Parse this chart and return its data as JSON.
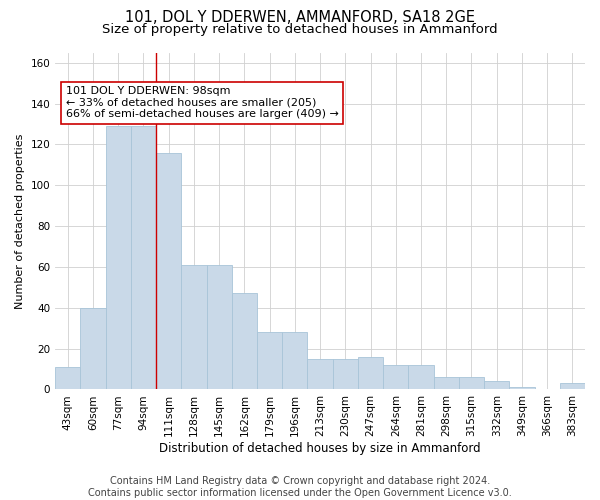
{
  "title1": "101, DOL Y DDERWEN, AMMANFORD, SA18 2GE",
  "title2": "Size of property relative to detached houses in Ammanford",
  "xlabel": "Distribution of detached houses by size in Ammanford",
  "ylabel": "Number of detached properties",
  "categories": [
    "43sqm",
    "60sqm",
    "77sqm",
    "94sqm",
    "111sqm",
    "128sqm",
    "145sqm",
    "162sqm",
    "179sqm",
    "196sqm",
    "213sqm",
    "230sqm",
    "247sqm",
    "264sqm",
    "281sqm",
    "298sqm",
    "315sqm",
    "332sqm",
    "349sqm",
    "366sqm",
    "383sqm"
  ],
  "values": [
    11,
    40,
    129,
    129,
    116,
    61,
    61,
    47,
    28,
    28,
    15,
    15,
    16,
    12,
    12,
    6,
    6,
    4,
    1,
    0,
    3
  ],
  "bar_color": "#c9d9e8",
  "bar_edge_color": "#a8c4d8",
  "vline_x": 3.5,
  "vline_color": "#cc0000",
  "annotation_text": "101 DOL Y DDERWEN: 98sqm\n← 33% of detached houses are smaller (205)\n66% of semi-detached houses are larger (409) →",
  "annotation_box_color": "white",
  "annotation_box_edge": "#cc0000",
  "footer": "Contains HM Land Registry data © Crown copyright and database right 2024.\nContains public sector information licensed under the Open Government Licence v3.0.",
  "ylim": [
    0,
    165
  ],
  "yticks": [
    0,
    20,
    40,
    60,
    80,
    100,
    120,
    140,
    160
  ],
  "grid_color": "#d0d0d0",
  "background_color": "#ffffff",
  "title_fontsize": 10.5,
  "subtitle_fontsize": 9.5,
  "tick_fontsize": 7.5,
  "footer_fontsize": 7,
  "ylabel_fontsize": 8,
  "xlabel_fontsize": 8.5,
  "annotation_fontsize": 8
}
